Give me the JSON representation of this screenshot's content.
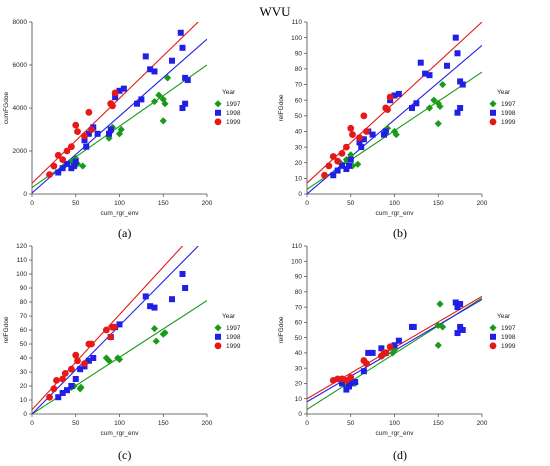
{
  "figure_title": "WVU",
  "colors": {
    "1997": "#1a9a1a",
    "1998": "#1f1fe6",
    "1999": "#e61919"
  },
  "chart_data": [
    {
      "panel_label": "(a)",
      "type": "scatter",
      "xlabel": "cum_rgr_env",
      "ylabel": "cumFGdoe",
      "xlim": [
        0,
        200
      ],
      "ylim": [
        0,
        8000
      ],
      "xticks": [
        0,
        50,
        100,
        150,
        200
      ],
      "yticks": [
        0,
        2000,
        4000,
        6000,
        8000
      ],
      "ytick_labels": [
        "0",
        "2000",
        "4000",
        "6000",
        "8000"
      ],
      "legend_title": "Year",
      "series": [
        {
          "name": "1997",
          "marker": "diamond",
          "points": [
            [
              38,
              1350
            ],
            [
              45,
              1500
            ],
            [
              50,
              1650
            ],
            [
              52,
              1400
            ],
            [
              58,
              1300
            ],
            [
              88,
              2600
            ],
            [
              90,
              2900
            ],
            [
              92,
              3100
            ],
            [
              100,
              2800
            ],
            [
              102,
              3000
            ],
            [
              140,
              4300
            ],
            [
              145,
              4600
            ],
            [
              150,
              4400
            ],
            [
              152,
              4200
            ],
            [
              150,
              3400
            ],
            [
              155,
              5400
            ]
          ],
          "line": [
            [
              0,
              300
            ],
            [
              200,
              6000
            ]
          ]
        },
        {
          "name": "1998",
          "marker": "square",
          "points": [
            [
              30,
              1000
            ],
            [
              35,
              1200
            ],
            [
              40,
              1400
            ],
            [
              45,
              1200
            ],
            [
              48,
              1300
            ],
            [
              50,
              1500
            ],
            [
              60,
              2500
            ],
            [
              62,
              2200
            ],
            [
              65,
              2800
            ],
            [
              70,
              3100
            ],
            [
              75,
              2800
            ],
            [
              88,
              2800
            ],
            [
              90,
              3000
            ],
            [
              95,
              4500
            ],
            [
              100,
              4800
            ],
            [
              105,
              4900
            ],
            [
              120,
              4200
            ],
            [
              125,
              4400
            ],
            [
              130,
              6400
            ],
            [
              135,
              5800
            ],
            [
              140,
              5700
            ],
            [
              160,
              6200
            ],
            [
              170,
              7500
            ],
            [
              172,
              6800
            ],
            [
              175,
              5400
            ],
            [
              178,
              5300
            ],
            [
              172,
              4000
            ],
            [
              175,
              4200
            ]
          ],
          "line": [
            [
              0,
              50
            ],
            [
              200,
              7200
            ]
          ]
        },
        {
          "name": "1999",
          "marker": "circle",
          "points": [
            [
              20,
              900
            ],
            [
              25,
              1300
            ],
            [
              30,
              1800
            ],
            [
              35,
              1600
            ],
            [
              40,
              2000
            ],
            [
              45,
              2200
            ],
            [
              50,
              3200
            ],
            [
              52,
              2900
            ],
            [
              60,
              2700
            ],
            [
              65,
              3800
            ],
            [
              68,
              3000
            ],
            [
              90,
              4200
            ],
            [
              92,
              4100
            ],
            [
              95,
              4700
            ],
            [
              90,
              4200
            ]
          ],
          "line": [
            [
              0,
              500
            ],
            [
              200,
              8400
            ]
          ]
        }
      ]
    },
    {
      "panel_label": "(b)",
      "type": "scatter",
      "xlabel": "cum_rgr_env",
      "ylabel": "relFGdoe",
      "xlim": [
        0,
        200
      ],
      "ylim": [
        0,
        110
      ],
      "xticks": [
        0,
        50,
        100,
        150,
        200
      ],
      "yticks": [
        0,
        10,
        20,
        30,
        40,
        50,
        60,
        70,
        80,
        90,
        100,
        110
      ],
      "ytick_labels": [
        "0",
        "10",
        "20",
        "30",
        "40",
        "50",
        "60",
        "70",
        "80",
        "90",
        "100",
        "110"
      ],
      "legend_title": "Year",
      "series": [
        {
          "name": "1997",
          "marker": "diamond",
          "points": [
            [
              38,
              20
            ],
            [
              45,
              22
            ],
            [
              50,
              25
            ],
            [
              52,
              18
            ],
            [
              58,
              19
            ],
            [
              88,
              38
            ],
            [
              90,
              40
            ],
            [
              92,
              42
            ],
            [
              100,
              40
            ],
            [
              102,
              38
            ],
            [
              140,
              55
            ],
            [
              145,
              60
            ],
            [
              150,
              58
            ],
            [
              152,
              56
            ],
            [
              150,
              45
            ],
            [
              155,
              70
            ]
          ],
          "line": [
            [
              0,
              3
            ],
            [
              200,
              78
            ]
          ]
        },
        {
          "name": "1998",
          "marker": "square",
          "points": [
            [
              30,
              12
            ],
            [
              35,
              15
            ],
            [
              40,
              18
            ],
            [
              45,
              16
            ],
            [
              48,
              18
            ],
            [
              50,
              22
            ],
            [
              60,
              33
            ],
            [
              62,
              30
            ],
            [
              65,
              35
            ],
            [
              70,
              40
            ],
            [
              75,
              38
            ],
            [
              88,
              38
            ],
            [
              90,
              40
            ],
            [
              95,
              60
            ],
            [
              100,
              63
            ],
            [
              105,
              64
            ],
            [
              120,
              55
            ],
            [
              125,
              58
            ],
            [
              130,
              84
            ],
            [
              135,
              77
            ],
            [
              140,
              76
            ],
            [
              160,
              82
            ],
            [
              170,
              100
            ],
            [
              172,
              90
            ],
            [
              175,
              72
            ],
            [
              178,
              70
            ],
            [
              172,
              52
            ],
            [
              175,
              55
            ]
          ],
          "line": [
            [
              0,
              0
            ],
            [
              200,
              95
            ]
          ]
        },
        {
          "name": "1999",
          "marker": "circle",
          "points": [
            [
              20,
              12
            ],
            [
              25,
              18
            ],
            [
              30,
              24
            ],
            [
              35,
              21
            ],
            [
              40,
              26
            ],
            [
              45,
              30
            ],
            [
              50,
              42
            ],
            [
              52,
              38
            ],
            [
              60,
              36
            ],
            [
              65,
              50
            ],
            [
              68,
              40
            ],
            [
              90,
              55
            ],
            [
              92,
              54
            ],
            [
              95,
              62
            ],
            [
              90,
              55
            ]
          ],
          "line": [
            [
              0,
              7
            ],
            [
              200,
              110
            ]
          ]
        }
      ]
    },
    {
      "panel_label": "(c)",
      "type": "scatter",
      "xlabel": "cum_rgr_env",
      "ylabel": "relFGdoe",
      "xlim": [
        0,
        200
      ],
      "ylim": [
        0,
        120
      ],
      "xticks": [
        0,
        50,
        100,
        150,
        200
      ],
      "yticks": [
        0,
        10,
        20,
        30,
        40,
        50,
        60,
        70,
        80,
        90,
        100,
        110,
        120
      ],
      "ytick_labels": [
        "0",
        "10",
        "20",
        "30",
        "40",
        "50",
        "60",
        "70",
        "80",
        "90",
        "100",
        "110",
        "120"
      ],
      "legend_title": "Year",
      "series": [
        {
          "name": "1997",
          "marker": "diamond",
          "points": [
            [
              45,
              19
            ],
            [
              48,
              20
            ],
            [
              55,
              18
            ],
            [
              56,
              19
            ],
            [
              85,
              40
            ],
            [
              88,
              38
            ],
            [
              98,
              40
            ],
            [
              100,
              39
            ],
            [
              140,
              61
            ],
            [
              142,
              52
            ],
            [
              150,
              57
            ],
            [
              152,
              58
            ]
          ],
          "line": [
            [
              0,
              0
            ],
            [
              200,
              81
            ]
          ]
        },
        {
          "name": "1998",
          "marker": "square",
          "points": [
            [
              30,
              12
            ],
            [
              35,
              15
            ],
            [
              40,
              17
            ],
            [
              45,
              20
            ],
            [
              50,
              25
            ],
            [
              55,
              32
            ],
            [
              60,
              34
            ],
            [
              65,
              38
            ],
            [
              70,
              40
            ],
            [
              90,
              55
            ],
            [
              95,
              62
            ],
            [
              100,
              64
            ],
            [
              130,
              84
            ],
            [
              135,
              77
            ],
            [
              140,
              76
            ],
            [
              160,
              82
            ],
            [
              172,
              100
            ],
            [
              175,
              90
            ]
          ],
          "line": [
            [
              0,
              0
            ],
            [
              190,
              120
            ]
          ]
        },
        {
          "name": "1999",
          "marker": "circle",
          "points": [
            [
              20,
              12
            ],
            [
              25,
              18
            ],
            [
              28,
              24
            ],
            [
              35,
              25
            ],
            [
              38,
              29
            ],
            [
              45,
              32
            ],
            [
              50,
              42
            ],
            [
              52,
              38
            ],
            [
              60,
              36
            ],
            [
              65,
              50
            ],
            [
              68,
              50
            ],
            [
              85,
              60
            ],
            [
              90,
              55
            ],
            [
              92,
              62
            ],
            [
              94,
              62
            ]
          ],
          "line": [
            [
              0,
              3
            ],
            [
              172,
              120
            ]
          ]
        }
      ]
    },
    {
      "panel_label": "(d)",
      "type": "scatter",
      "xlabel": "cum_rgr_env",
      "ylabel": "relFGdoe",
      "xlim": [
        0,
        200
      ],
      "ylim": [
        0,
        110
      ],
      "xticks": [
        0,
        50,
        100,
        150,
        200
      ],
      "yticks": [
        0,
        10,
        20,
        30,
        40,
        50,
        60,
        70,
        80,
        90,
        100,
        110
      ],
      "ytick_labels": [
        "0",
        "10",
        "20",
        "30",
        "40",
        "50",
        "60",
        "70",
        "80",
        "90",
        "100",
        "110"
      ],
      "legend_title": "Year",
      "series": [
        {
          "name": "1997",
          "marker": "diamond",
          "points": [
            [
              45,
              18
            ],
            [
              48,
              20
            ],
            [
              55,
              20
            ],
            [
              85,
              38
            ],
            [
              88,
              40
            ],
            [
              98,
              40
            ],
            [
              100,
              42
            ],
            [
              150,
              58
            ],
            [
              152,
              72
            ],
            [
              150,
              45
            ],
            [
              155,
              57
            ]
          ],
          "line": [
            [
              0,
              3
            ],
            [
              200,
              76
            ]
          ]
        },
        {
          "name": "1998",
          "marker": "square",
          "points": [
            [
              40,
              20
            ],
            [
              45,
              16
            ],
            [
              48,
              18
            ],
            [
              50,
              20
            ],
            [
              55,
              21
            ],
            [
              65,
              28
            ],
            [
              70,
              40
            ],
            [
              75,
              40
            ],
            [
              85,
              43
            ],
            [
              90,
              40
            ],
            [
              100,
              45
            ],
            [
              105,
              48
            ],
            [
              120,
              57
            ],
            [
              122,
              57
            ],
            [
              170,
              73
            ],
            [
              172,
              70
            ],
            [
              175,
              72
            ],
            [
              178,
              55
            ],
            [
              172,
              53
            ],
            [
              175,
              57
            ]
          ],
          "line": [
            [
              0,
              8
            ],
            [
              200,
              75
            ]
          ]
        },
        {
          "name": "1999",
          "marker": "circle",
          "points": [
            [
              30,
              22
            ],
            [
              35,
              23
            ],
            [
              40,
              23
            ],
            [
              45,
              22
            ],
            [
              50,
              24
            ],
            [
              65,
              35
            ],
            [
              68,
              33
            ],
            [
              85,
              38
            ],
            [
              88,
              40
            ],
            [
              90,
              40
            ],
            [
              95,
              44
            ],
            [
              90,
              40
            ]
          ],
          "line": [
            [
              0,
              10
            ],
            [
              200,
              77
            ]
          ]
        }
      ]
    }
  ]
}
